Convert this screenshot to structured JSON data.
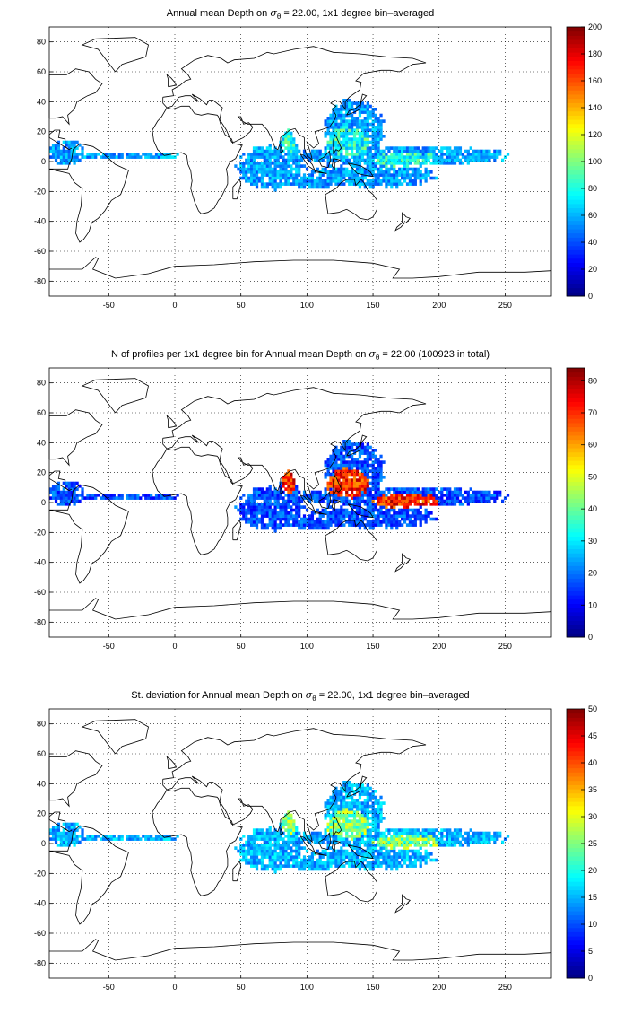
{
  "maps": [
    {
      "id": "mean",
      "title_pre": "Annual mean Depth on ",
      "title_symbol": "σ",
      "title_sub": "θ",
      "title_post": " = 22.00, 1x1 degree bin–averaged",
      "colorbar": {
        "min": 0,
        "max": 200,
        "ticks": [
          "0",
          "20",
          "40",
          "60",
          "80",
          "100",
          "120",
          "140",
          "160",
          "180",
          "200"
        ]
      },
      "field_level": {
        "background": 0.28,
        "hotspot": 0.4
      }
    },
    {
      "id": "count",
      "title_pre": "N of profiles per 1x1 degree bin for Annual mean Depth on ",
      "title_symbol": "σ",
      "title_sub": "θ",
      "title_post": " = 22.00 (100923 in total)",
      "colorbar": {
        "min": 0,
        "max": 84,
        "ticks": [
          "0",
          "10",
          "20",
          "30",
          "40",
          "50",
          "60",
          "70",
          "80"
        ]
      },
      "field_level": {
        "background": 0.2,
        "hotspot": 0.85
      }
    },
    {
      "id": "std",
      "title_pre": "St. deviation for Annual mean Depth on ",
      "title_symbol": "σ",
      "title_sub": "θ",
      "title_post": " = 22.00, 1x1 degree bin–averaged",
      "colorbar": {
        "min": 0,
        "max": 50,
        "ticks": [
          "0",
          "5",
          "10",
          "15",
          "20",
          "25",
          "30",
          "35",
          "40",
          "45",
          "50"
        ]
      },
      "field_level": {
        "background": 0.3,
        "hotspot": 0.5
      }
    }
  ],
  "axes": {
    "lon_range": [
      -95,
      285
    ],
    "lat_range": [
      -90,
      90
    ],
    "x_ticks": [
      "-50",
      "0",
      "50",
      "100",
      "150",
      "200",
      "250"
    ],
    "y_ticks": [
      "80",
      "60",
      "40",
      "20",
      "0",
      "-20",
      "-40",
      "-60",
      "-80"
    ],
    "grid": "dotted"
  },
  "colormap": "jet"
}
